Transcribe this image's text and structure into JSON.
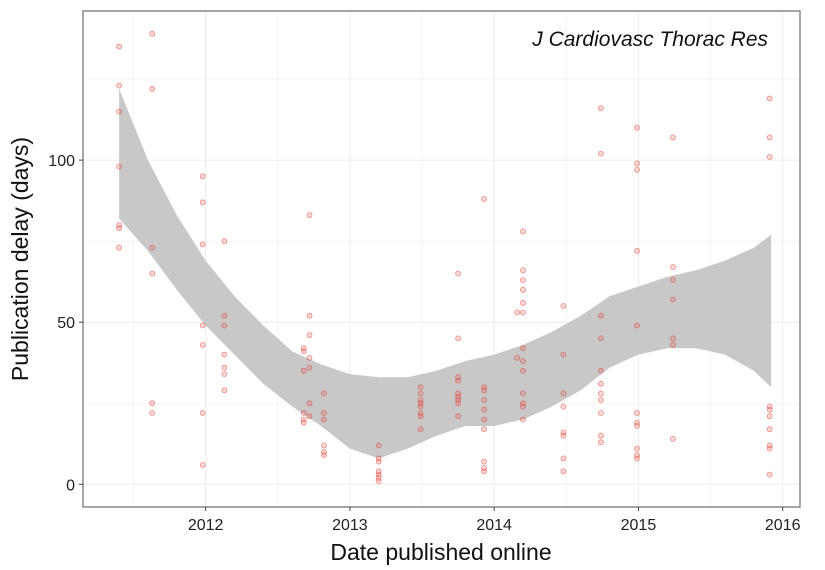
{
  "chart_data": {
    "type": "scatter",
    "title": "J Cardiovasc Thorac Res",
    "xlabel": "Date published online",
    "ylabel": "Publication delay (days)",
    "xlim": [
      2011.15,
      2016.12
    ],
    "ylim": [
      -7,
      146
    ],
    "x_ticks": [
      2012,
      2013,
      2014,
      2015,
      2016
    ],
    "x_tick_labels": [
      "2012",
      "2013",
      "2014",
      "2015",
      "2016"
    ],
    "y_ticks": [
      0,
      50,
      100
    ],
    "y_tick_labels": [
      "0",
      "50",
      "100"
    ],
    "grid": true,
    "legend": "none",
    "colors": {
      "points": "#e8392a",
      "ribbon": "#c8c8c8",
      "panel_border": "#7f7f7f",
      "grid": "#ececec"
    },
    "series": [
      {
        "points": [
          [
            2011.4,
            135
          ],
          [
            2011.4,
            123
          ],
          [
            2011.4,
            115
          ],
          [
            2011.4,
            98
          ],
          [
            2011.4,
            80
          ],
          [
            2011.4,
            79
          ],
          [
            2011.4,
            73
          ],
          [
            2011.63,
            139
          ],
          [
            2011.63,
            122
          ],
          [
            2011.63,
            73
          ],
          [
            2011.63,
            65
          ],
          [
            2011.63,
            25
          ],
          [
            2011.63,
            22
          ],
          [
            2011.98,
            95
          ],
          [
            2011.98,
            87
          ],
          [
            2011.98,
            74
          ],
          [
            2011.98,
            49
          ],
          [
            2011.98,
            43
          ],
          [
            2011.98,
            22
          ],
          [
            2011.98,
            6
          ],
          [
            2012.13,
            75
          ],
          [
            2012.13,
            52
          ],
          [
            2012.13,
            49
          ],
          [
            2012.13,
            40
          ],
          [
            2012.13,
            36
          ],
          [
            2012.13,
            34
          ],
          [
            2012.13,
            29
          ],
          [
            2012.68,
            42
          ],
          [
            2012.68,
            41
          ],
          [
            2012.68,
            35
          ],
          [
            2012.68,
            22
          ],
          [
            2012.68,
            20
          ],
          [
            2012.68,
            19
          ],
          [
            2012.72,
            83
          ],
          [
            2012.72,
            52
          ],
          [
            2012.72,
            46
          ],
          [
            2012.72,
            39
          ],
          [
            2012.72,
            36
          ],
          [
            2012.72,
            25
          ],
          [
            2012.72,
            21
          ],
          [
            2012.82,
            28
          ],
          [
            2012.82,
            22
          ],
          [
            2012.82,
            20
          ],
          [
            2012.82,
            12
          ],
          [
            2012.82,
            10
          ],
          [
            2012.82,
            9
          ],
          [
            2013.2,
            12
          ],
          [
            2013.2,
            8
          ],
          [
            2013.2,
            7
          ],
          [
            2013.2,
            4
          ],
          [
            2013.2,
            3
          ],
          [
            2013.2,
            2
          ],
          [
            2013.2,
            1
          ],
          [
            2013.49,
            30
          ],
          [
            2013.49,
            28
          ],
          [
            2013.49,
            26
          ],
          [
            2013.49,
            25
          ],
          [
            2013.49,
            24
          ],
          [
            2013.49,
            22
          ],
          [
            2013.49,
            21
          ],
          [
            2013.49,
            17
          ],
          [
            2013.75,
            65
          ],
          [
            2013.75,
            45
          ],
          [
            2013.75,
            33
          ],
          [
            2013.75,
            32
          ],
          [
            2013.75,
            28
          ],
          [
            2013.75,
            27
          ],
          [
            2013.75,
            26
          ],
          [
            2013.75,
            25
          ],
          [
            2013.75,
            21
          ],
          [
            2013.93,
            88
          ],
          [
            2013.93,
            30
          ],
          [
            2013.93,
            29
          ],
          [
            2013.93,
            26
          ],
          [
            2013.93,
            23
          ],
          [
            2013.93,
            20
          ],
          [
            2013.93,
            17
          ],
          [
            2013.93,
            7
          ],
          [
            2013.93,
            5
          ],
          [
            2013.93,
            4
          ],
          [
            2014.16,
            53
          ],
          [
            2014.16,
            39
          ],
          [
            2014.2,
            78
          ],
          [
            2014.2,
            66
          ],
          [
            2014.2,
            63
          ],
          [
            2014.2,
            60
          ],
          [
            2014.2,
            56
          ],
          [
            2014.2,
            53
          ],
          [
            2014.2,
            42
          ],
          [
            2014.2,
            38
          ],
          [
            2014.2,
            35
          ],
          [
            2014.2,
            28
          ],
          [
            2014.2,
            25
          ],
          [
            2014.2,
            24
          ],
          [
            2014.2,
            20
          ],
          [
            2014.48,
            55
          ],
          [
            2014.48,
            40
          ],
          [
            2014.48,
            28
          ],
          [
            2014.48,
            24
          ],
          [
            2014.48,
            16
          ],
          [
            2014.48,
            15
          ],
          [
            2014.48,
            8
          ],
          [
            2014.48,
            4
          ],
          [
            2014.74,
            116
          ],
          [
            2014.74,
            102
          ],
          [
            2014.74,
            52
          ],
          [
            2014.74,
            45
          ],
          [
            2014.74,
            35
          ],
          [
            2014.74,
            31
          ],
          [
            2014.74,
            28
          ],
          [
            2014.74,
            26
          ],
          [
            2014.74,
            22
          ],
          [
            2014.74,
            15
          ],
          [
            2014.74,
            13
          ],
          [
            2014.99,
            110
          ],
          [
            2014.99,
            99
          ],
          [
            2014.99,
            97
          ],
          [
            2014.99,
            72
          ],
          [
            2014.99,
            49
          ],
          [
            2014.99,
            22
          ],
          [
            2014.99,
            19
          ],
          [
            2014.99,
            18
          ],
          [
            2014.99,
            11
          ],
          [
            2014.99,
            9
          ],
          [
            2014.99,
            8
          ],
          [
            2015.24,
            107
          ],
          [
            2015.24,
            67
          ],
          [
            2015.24,
            63
          ],
          [
            2015.24,
            57
          ],
          [
            2015.24,
            45
          ],
          [
            2015.24,
            43
          ],
          [
            2015.24,
            14
          ],
          [
            2015.91,
            119
          ],
          [
            2015.91,
            107
          ],
          [
            2015.91,
            101
          ],
          [
            2015.91,
            24
          ],
          [
            2015.91,
            23
          ],
          [
            2015.91,
            21
          ],
          [
            2015.91,
            17
          ],
          [
            2015.91,
            12
          ],
          [
            2015.91,
            11
          ],
          [
            2015.91,
            3
          ]
        ]
      }
    ],
    "smooth_band": {
      "x": [
        2011.4,
        2011.6,
        2011.8,
        2012.0,
        2012.2,
        2012.4,
        2012.6,
        2012.8,
        2013.0,
        2013.2,
        2013.4,
        2013.6,
        2013.8,
        2014.0,
        2014.2,
        2014.4,
        2014.6,
        2014.8,
        2015.0,
        2015.2,
        2015.4,
        2015.6,
        2015.8,
        2015.92
      ],
      "upper": [
        122,
        100,
        83,
        69,
        58,
        49,
        41,
        37,
        34,
        33,
        33,
        35,
        38,
        40,
        43,
        47,
        52,
        58,
        61,
        64,
        66,
        69,
        73,
        77
      ],
      "lower": [
        82,
        72,
        60,
        49,
        40,
        31,
        24,
        18,
        11,
        8,
        11,
        15,
        18,
        18,
        20,
        24,
        29,
        36,
        40,
        42,
        42,
        40,
        35,
        30
      ]
    }
  }
}
